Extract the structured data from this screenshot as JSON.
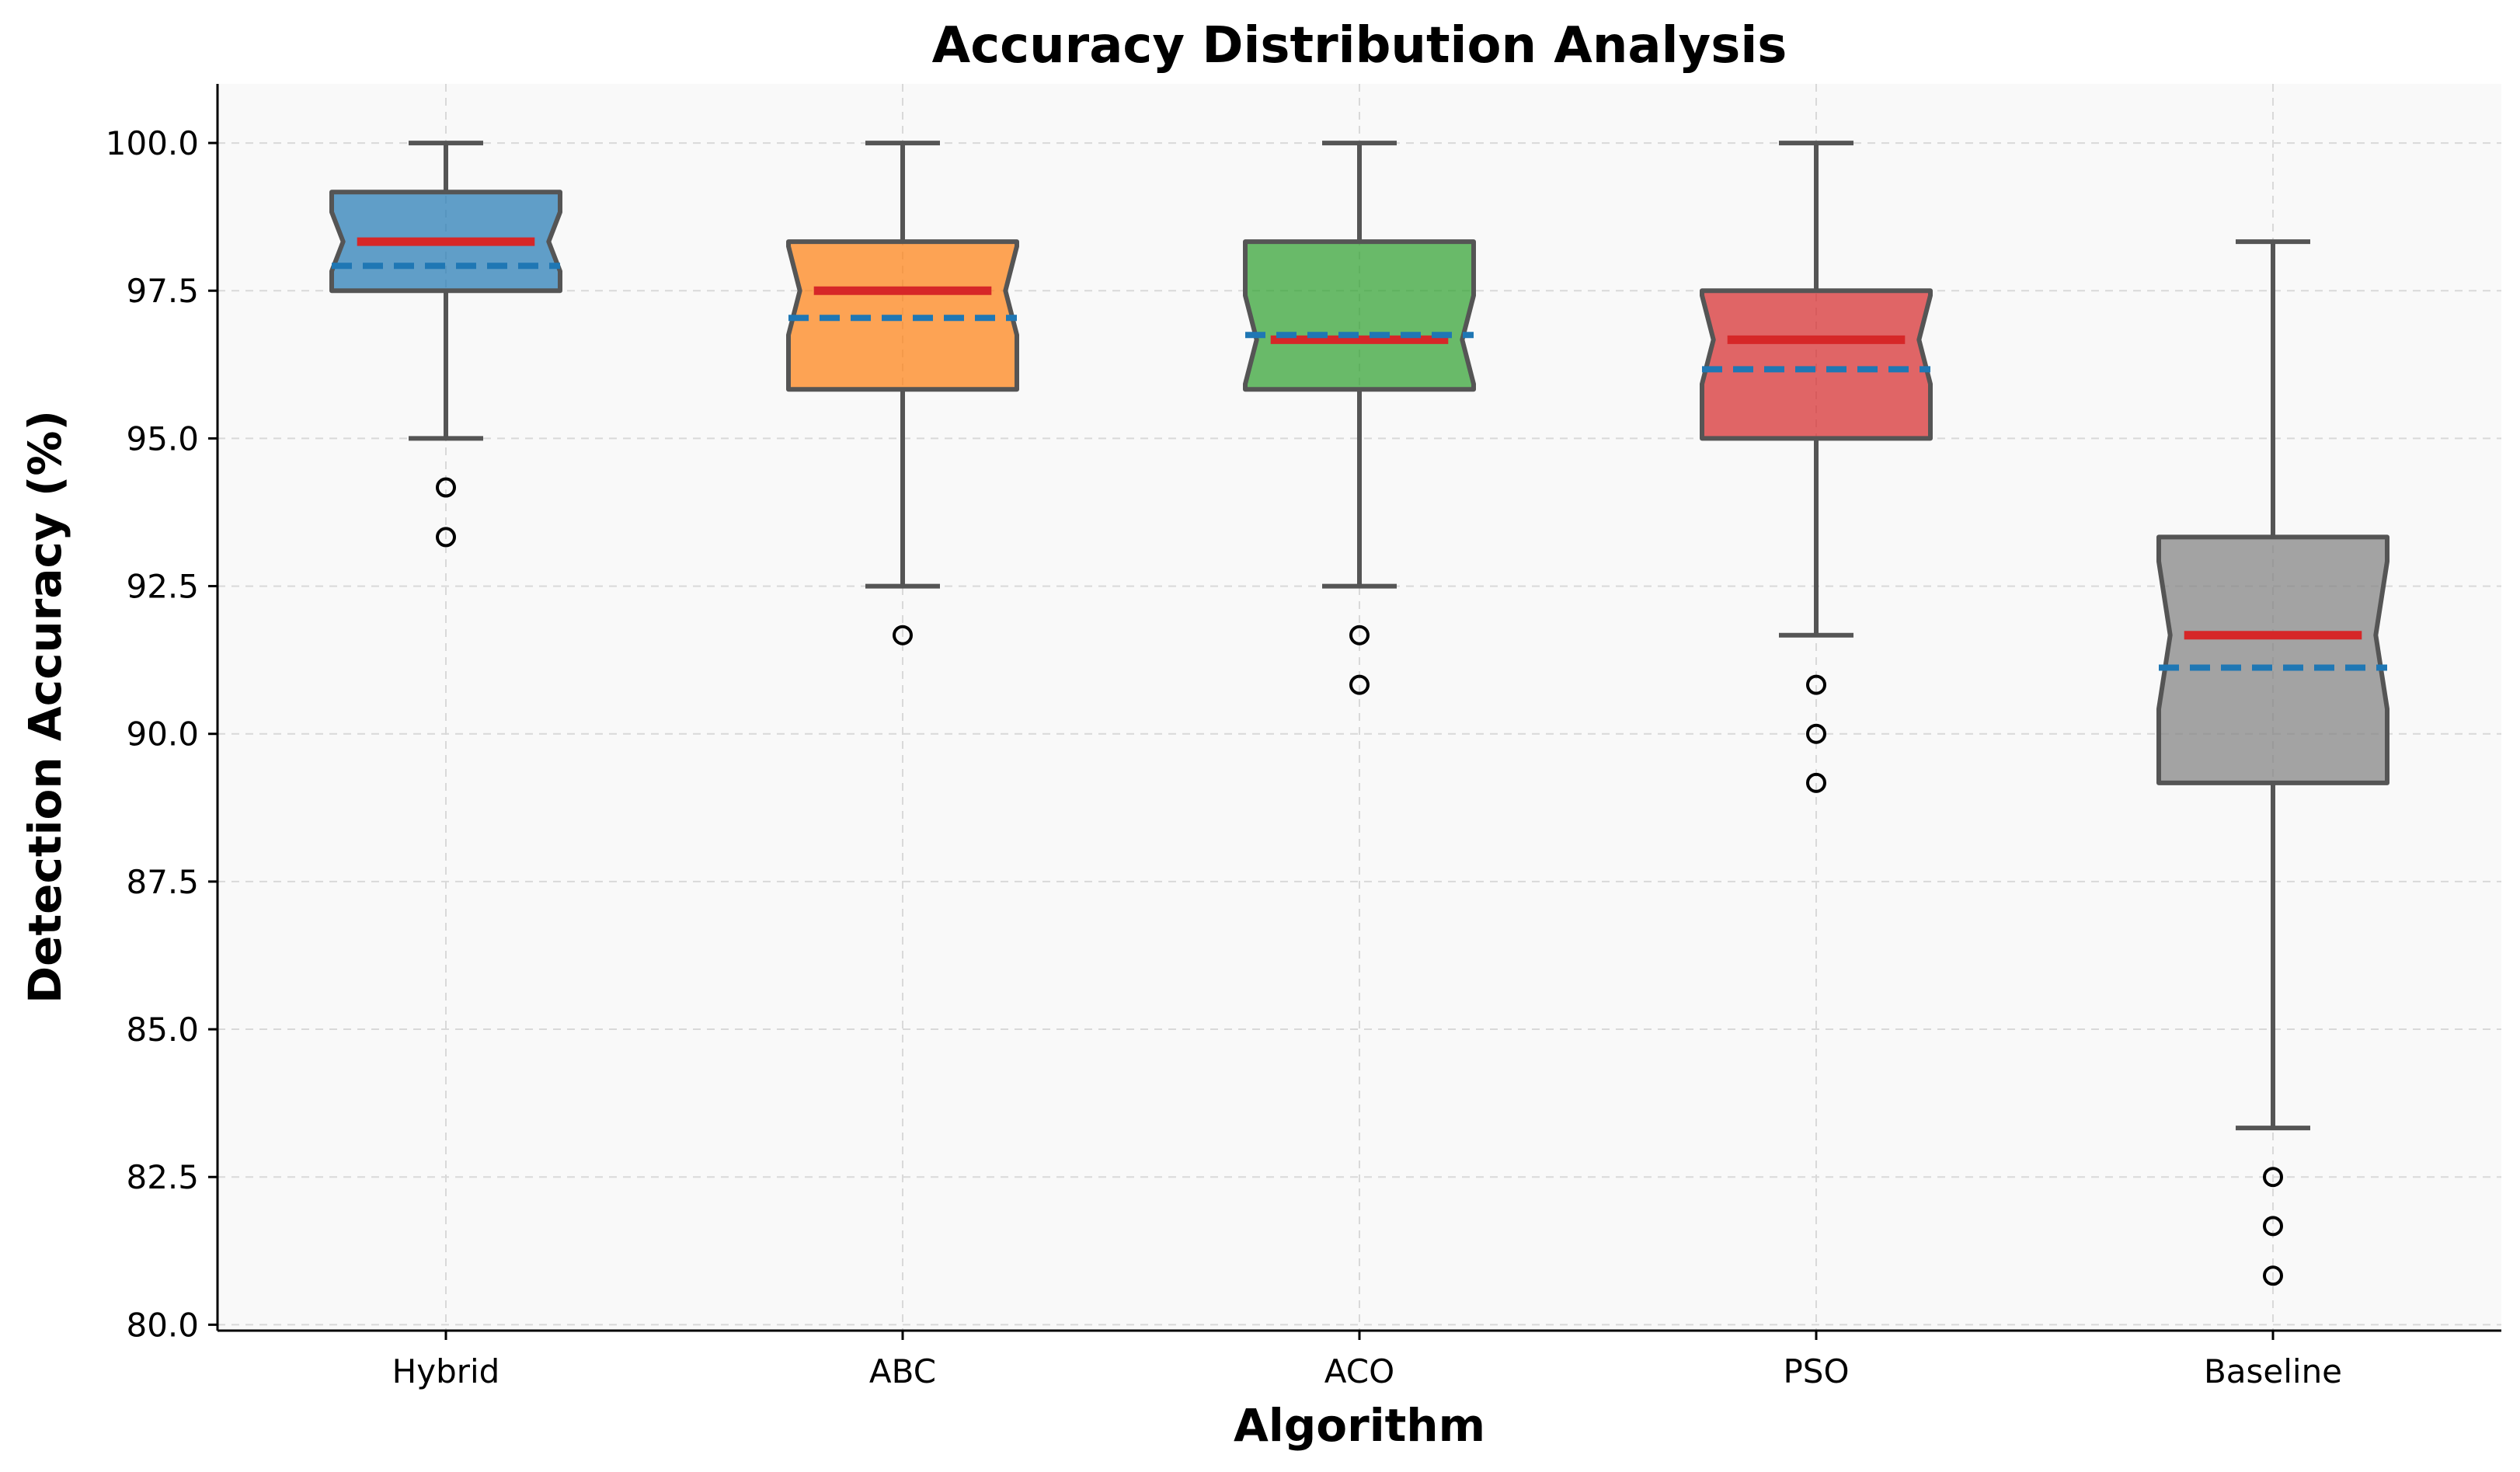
{
  "chart_data": {
    "type": "box",
    "title": "Accuracy Distribution Analysis",
    "xlabel": "Algorithm",
    "ylabel": "Detection Accuracy (%)",
    "ylim": [
      79.9,
      101.0
    ],
    "yticks": [
      "80.0",
      "82.5",
      "85.0",
      "87.5",
      "90.0",
      "92.5",
      "95.0",
      "97.5",
      "100.0"
    ],
    "ytick_values": [
      80.0,
      82.5,
      85.0,
      87.5,
      90.0,
      92.5,
      95.0,
      97.5,
      100.0
    ],
    "grid": true,
    "notched": true,
    "show_mean_line": true,
    "categories": [
      "Hybrid",
      "ABC",
      "ACO",
      "PSO",
      "Baseline"
    ],
    "boxes": [
      {
        "name": "Hybrid",
        "whisker_low": 95.0,
        "q1": 97.5,
        "median": 98.33,
        "mean": 97.92,
        "q3": 99.17,
        "whisker_high": 100.0,
        "outliers": [
          94.17,
          93.33
        ],
        "color": "#1f77b4"
      },
      {
        "name": "ABC",
        "whisker_low": 92.5,
        "q1": 95.83,
        "median": 97.5,
        "mean": 97.04,
        "q3": 98.33,
        "whisker_high": 100.0,
        "outliers": [
          91.67
        ],
        "color": "#ff7f0e"
      },
      {
        "name": "ACO",
        "whisker_low": 92.5,
        "q1": 95.83,
        "median": 96.67,
        "mean": 96.75,
        "q3": 98.33,
        "whisker_high": 100.0,
        "outliers": [
          91.67,
          90.83
        ],
        "color": "#2ca02c"
      },
      {
        "name": "PSO",
        "whisker_low": 91.67,
        "q1": 95.0,
        "median": 96.67,
        "mean": 96.17,
        "q3": 97.5,
        "whisker_high": 100.0,
        "outliers": [
          90.83,
          90.0,
          89.17
        ],
        "color": "#d62728"
      },
      {
        "name": "Baseline",
        "whisker_low": 83.33,
        "q1": 89.17,
        "median": 91.67,
        "mean": 91.12,
        "q3": 93.33,
        "whisker_high": 98.33,
        "outliers": [
          82.5,
          81.67,
          80.83
        ],
        "color": "#7f7f7f"
      }
    ],
    "median_color": "#d62728",
    "mean_color": "#1f77b4",
    "plot_background": "#f9f9f9"
  }
}
